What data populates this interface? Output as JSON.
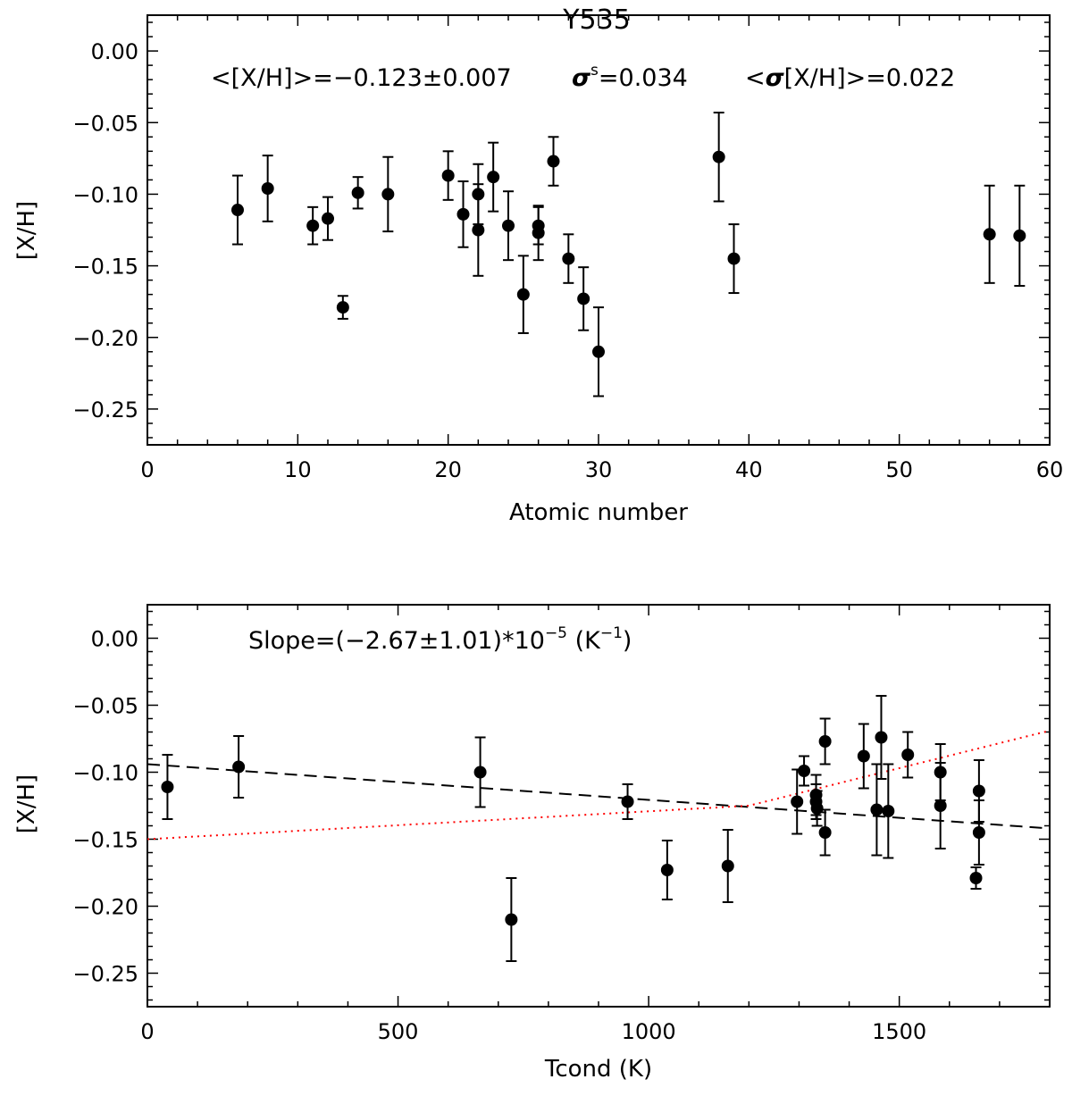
{
  "chart_data": [
    {
      "type": "scatter",
      "title": "Y535",
      "xlabel": "Atomic number",
      "ylabel": "[X/H]",
      "xlim": [
        0,
        60
      ],
      "ylim": [
        -0.275,
        0.025
      ],
      "xticks": [
        0,
        10,
        20,
        30,
        40,
        50,
        60
      ],
      "xtick_labels": [
        "0",
        "10",
        "20",
        "30",
        "40",
        "50",
        "60"
      ],
      "yticks": [
        0.0,
        -0.05,
        -0.1,
        -0.15,
        -0.2,
        -0.25
      ],
      "ytick_labels": [
        "0.00",
        "−0.05",
        "−0.10",
        "−0.15",
        "−0.20",
        "−0.25"
      ],
      "grid": false,
      "annotations": {
        "mean": "<[X/H]>=−0.123±0.007",
        "sigma_symbol": "σ",
        "sigma_sup": "s",
        "sigma_value": "=0.034",
        "mean_err_prefix": "<",
        "mean_err_symbol": "σ",
        "mean_err_value": "[X/H]>=0.022"
      },
      "points": [
        {
          "x": 6,
          "y": -0.111,
          "err": 0.024
        },
        {
          "x": 8,
          "y": -0.096,
          "err": 0.023
        },
        {
          "x": 11,
          "y": -0.122,
          "err": 0.013
        },
        {
          "x": 12,
          "y": -0.117,
          "err": 0.015
        },
        {
          "x": 13,
          "y": -0.179,
          "err": 0.008
        },
        {
          "x": 14,
          "y": -0.099,
          "err": 0.011
        },
        {
          "x": 16,
          "y": -0.1,
          "err": 0.026
        },
        {
          "x": 20,
          "y": -0.087,
          "err": 0.017
        },
        {
          "x": 21,
          "y": -0.114,
          "err": 0.023
        },
        {
          "x": 22,
          "y": -0.1,
          "err": 0.021
        },
        {
          "x": 22,
          "y": -0.125,
          "err": 0.032
        },
        {
          "x": 23,
          "y": -0.088,
          "err": 0.024
        },
        {
          "x": 24,
          "y": -0.122,
          "err": 0.024
        },
        {
          "x": 25,
          "y": -0.17,
          "err": 0.027
        },
        {
          "x": 26,
          "y": -0.122,
          "err": 0.013
        },
        {
          "x": 26,
          "y": -0.127,
          "err": 0.019
        },
        {
          "x": 27,
          "y": -0.077,
          "err": 0.017
        },
        {
          "x": 28,
          "y": -0.145,
          "err": 0.017
        },
        {
          "x": 29,
          "y": -0.173,
          "err": 0.022
        },
        {
          "x": 30,
          "y": -0.21,
          "err": 0.031
        },
        {
          "x": 38,
          "y": -0.074,
          "err": 0.031
        },
        {
          "x": 39,
          "y": -0.145,
          "err": 0.024
        },
        {
          "x": 56,
          "y": -0.128,
          "err": 0.034
        },
        {
          "x": 58,
          "y": -0.129,
          "err": 0.035
        }
      ]
    },
    {
      "type": "scatter",
      "xlabel": "Tcond (K)",
      "ylabel": "[X/H]",
      "xlim": [
        0,
        1800
      ],
      "ylim": [
        -0.275,
        0.025
      ],
      "xticks": [
        0,
        500,
        1000,
        1500
      ],
      "xtick_labels": [
        "0",
        "500",
        "1000",
        "1500"
      ],
      "yticks": [
        0.0,
        -0.05,
        -0.1,
        -0.15,
        -0.2,
        -0.25
      ],
      "ytick_labels": [
        "0.00",
        "−0.05",
        "−0.10",
        "−0.15",
        "−0.20",
        "−0.25"
      ],
      "grid": false,
      "annotations": {
        "slope_main": "Slope=(−2.67±1.01)*10",
        "slope_exp": "−5",
        "slope_unit_open": " (K",
        "slope_unit_exp": "−1",
        "slope_unit_close": ")"
      },
      "colors": {
        "fit_line": "#000000",
        "reference_line": "#ff0000"
      },
      "fit_line": {
        "x": [
          0,
          1800
        ],
        "y": [
          -0.094,
          -0.142
        ]
      },
      "reference_line": {
        "x": [
          0,
          1200,
          1800
        ],
        "y": [
          -0.15,
          -0.125,
          -0.069
        ]
      },
      "points": [
        {
          "x": 40,
          "y": -0.111,
          "err": 0.024
        },
        {
          "x": 182,
          "y": -0.096,
          "err": 0.023
        },
        {
          "x": 664,
          "y": -0.1,
          "err": 0.026
        },
        {
          "x": 726,
          "y": -0.21,
          "err": 0.031
        },
        {
          "x": 958,
          "y": -0.122,
          "err": 0.013
        },
        {
          "x": 1037,
          "y": -0.173,
          "err": 0.022
        },
        {
          "x": 1158,
          "y": -0.17,
          "err": 0.027
        },
        {
          "x": 1296,
          "y": -0.122,
          "err": 0.024
        },
        {
          "x": 1310,
          "y": -0.099,
          "err": 0.011
        },
        {
          "x": 1334,
          "y": -0.117,
          "err": 0.015
        },
        {
          "x": 1334,
          "y": -0.122,
          "err": 0.013
        },
        {
          "x": 1336,
          "y": -0.127,
          "err": 0.013
        },
        {
          "x": 1352,
          "y": -0.145,
          "err": 0.017
        },
        {
          "x": 1352,
          "y": -0.077,
          "err": 0.017
        },
        {
          "x": 1429,
          "y": -0.088,
          "err": 0.024
        },
        {
          "x": 1455,
          "y": -0.128,
          "err": 0.034
        },
        {
          "x": 1464,
          "y": -0.074,
          "err": 0.031
        },
        {
          "x": 1478,
          "y": -0.129,
          "err": 0.035
        },
        {
          "x": 1517,
          "y": -0.087,
          "err": 0.017
        },
        {
          "x": 1582,
          "y": -0.1,
          "err": 0.021
        },
        {
          "x": 1582,
          "y": -0.125,
          "err": 0.032
        },
        {
          "x": 1653,
          "y": -0.179,
          "err": 0.008
        },
        {
          "x": 1659,
          "y": -0.145,
          "err": 0.024
        },
        {
          "x": 1659,
          "y": -0.114,
          "err": 0.023
        }
      ]
    }
  ]
}
